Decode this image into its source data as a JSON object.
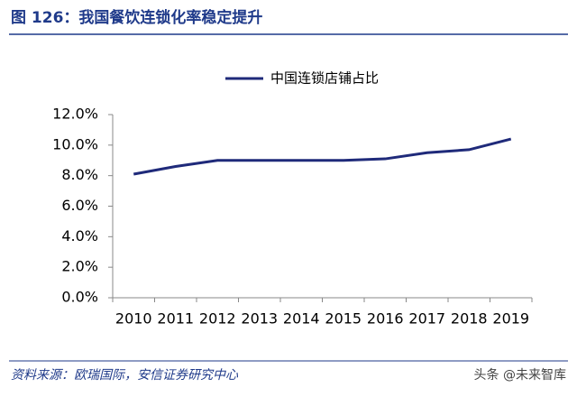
{
  "title": "图 126：我国餐饮连锁化率稳定提升",
  "source": "资料来源：欧瑞国际，安信证券研究中心",
  "watermark": "头条 @未来智库",
  "chart_data": {
    "type": "line",
    "categories": [
      "2010",
      "2011",
      "2012",
      "2013",
      "2014",
      "2015",
      "2016",
      "2017",
      "2018",
      "2019"
    ],
    "series": [
      {
        "name": "中国连锁店铺占比",
        "color": "#1f2a7a",
        "values": [
          8.1,
          8.6,
          9.0,
          9.0,
          9.0,
          9.0,
          9.1,
          9.5,
          9.7,
          10.4
        ]
      }
    ],
    "ylim": [
      0,
      12
    ],
    "yticks": [
      {
        "value": 0,
        "label": "0.0%"
      },
      {
        "value": 2,
        "label": "2.0%"
      },
      {
        "value": 4,
        "label": "4.0%"
      },
      {
        "value": 6,
        "label": "6.0%"
      },
      {
        "value": 8,
        "label": "8.0%"
      },
      {
        "value": 10,
        "label": "10.0%"
      },
      {
        "value": 12,
        "label": "12.0%"
      }
    ],
    "legend": "top"
  }
}
